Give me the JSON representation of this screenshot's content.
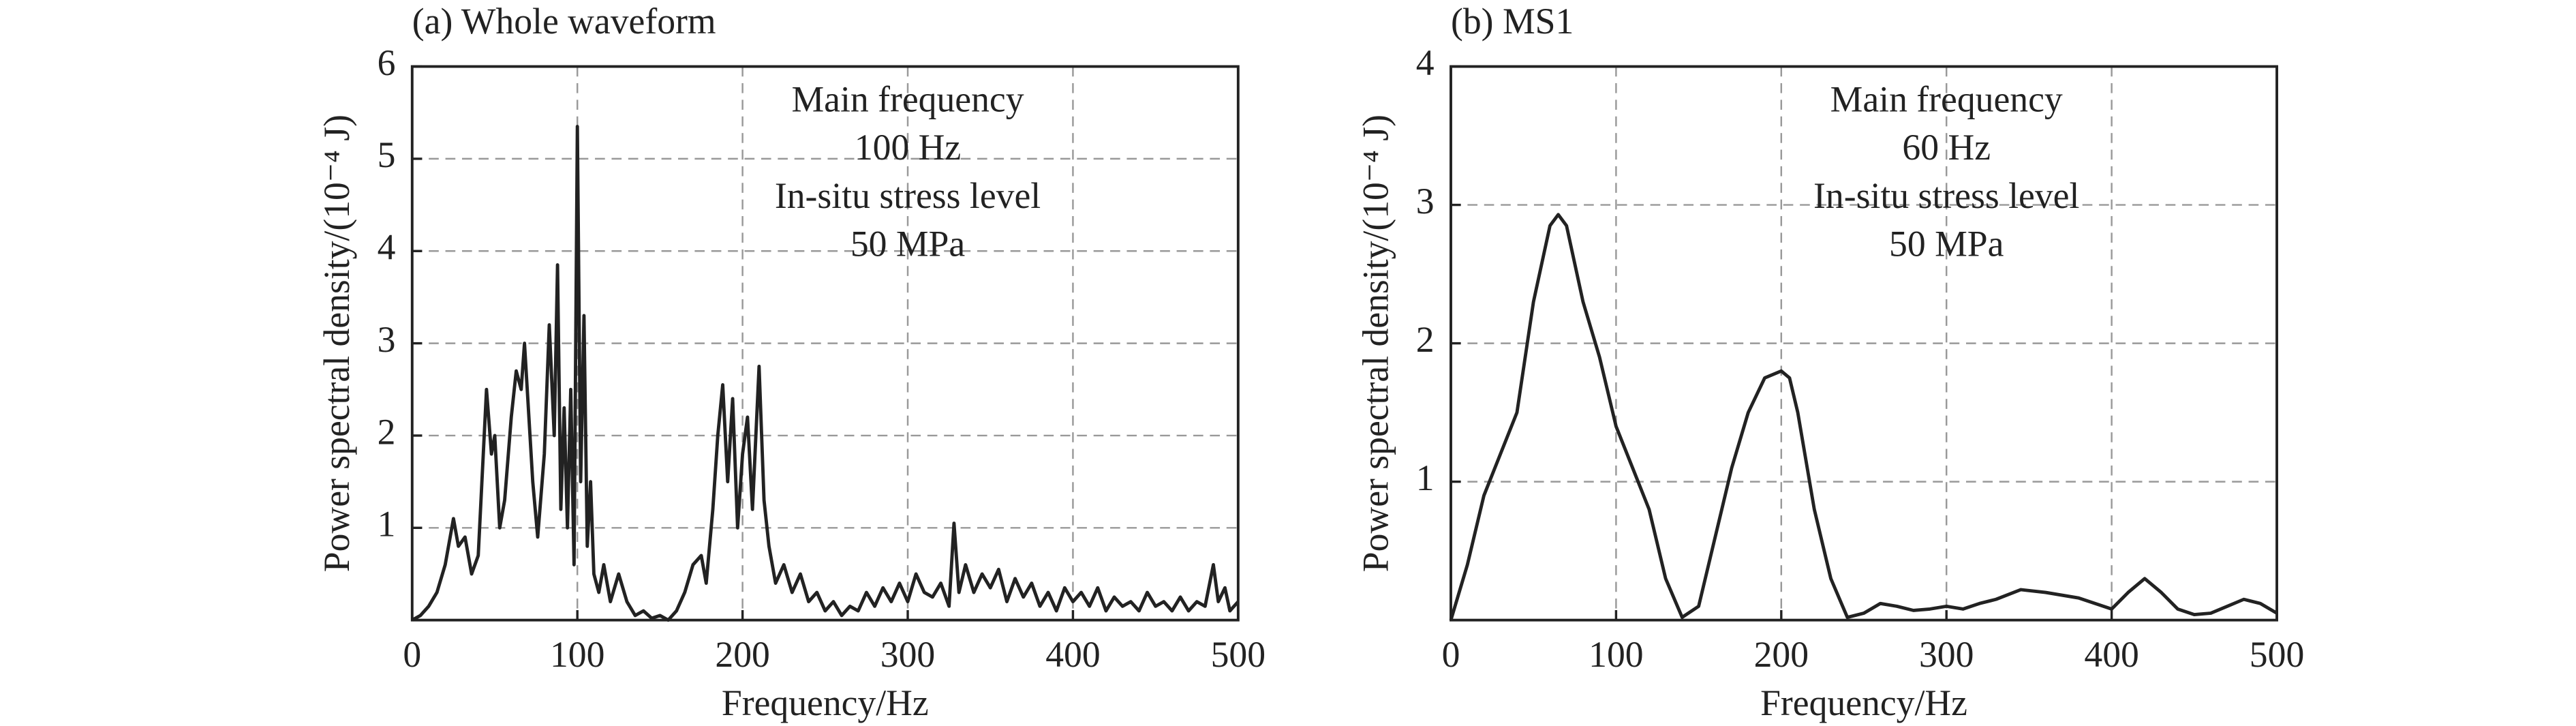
{
  "chart_data": [
    {
      "type": "line",
      "title": "(a) Whole waveform",
      "x_label": "Frequency/Hz",
      "y_label": "Power spectral density/(10⁻⁴ J)",
      "annotation": [
        "Main frequency",
        "100 Hz",
        "In-situ stress level",
        "50 MPa"
      ],
      "x": [
        0,
        5,
        10,
        15,
        20,
        25,
        28,
        32,
        36,
        40,
        45,
        48,
        50,
        53,
        56,
        60,
        63,
        66,
        68,
        70,
        73,
        76,
        80,
        83,
        86,
        88,
        90,
        92,
        94,
        96,
        98,
        100,
        102,
        104,
        106,
        108,
        110,
        113,
        116,
        120,
        125,
        130,
        135,
        140,
        145,
        150,
        155,
        160,
        165,
        170,
        175,
        178,
        182,
        185,
        188,
        191,
        194,
        197,
        200,
        203,
        206,
        210,
        213,
        216,
        220,
        225,
        230,
        235,
        240,
        245,
        250,
        255,
        260,
        265,
        270,
        275,
        280,
        285,
        290,
        295,
        300,
        305,
        310,
        315,
        320,
        325,
        328,
        331,
        335,
        340,
        345,
        350,
        355,
        360,
        365,
        370,
        375,
        380,
        385,
        390,
        395,
        400,
        405,
        410,
        415,
        420,
        425,
        430,
        435,
        440,
        445,
        450,
        455,
        460,
        465,
        470,
        475,
        480,
        485,
        488,
        492,
        495,
        500
      ],
      "values": [
        0,
        0.05,
        0.15,
        0.3,
        0.6,
        1.1,
        0.8,
        0.9,
        0.5,
        0.7,
        2.5,
        1.8,
        2.0,
        1.0,
        1.3,
        2.2,
        2.7,
        2.5,
        3.0,
        2.4,
        1.5,
        0.9,
        1.8,
        3.2,
        2.0,
        3.85,
        1.2,
        2.3,
        1.0,
        2.5,
        0.6,
        5.35,
        1.5,
        3.3,
        0.8,
        1.5,
        0.5,
        0.3,
        0.6,
        0.2,
        0.5,
        0.2,
        0.05,
        0.1,
        0.02,
        0.05,
        0,
        0.1,
        0.3,
        0.6,
        0.7,
        0.4,
        1.2,
        2.0,
        2.55,
        1.5,
        2.4,
        1.0,
        1.8,
        2.2,
        1.2,
        2.75,
        1.3,
        0.8,
        0.4,
        0.6,
        0.3,
        0.5,
        0.2,
        0.3,
        0.1,
        0.2,
        0.05,
        0.15,
        0.1,
        0.3,
        0.15,
        0.35,
        0.2,
        0.4,
        0.2,
        0.5,
        0.3,
        0.25,
        0.4,
        0.15,
        1.05,
        0.3,
        0.6,
        0.3,
        0.5,
        0.35,
        0.55,
        0.2,
        0.45,
        0.25,
        0.4,
        0.15,
        0.3,
        0.1,
        0.35,
        0.2,
        0.3,
        0.15,
        0.35,
        0.1,
        0.25,
        0.15,
        0.2,
        0.1,
        0.3,
        0.15,
        0.2,
        0.1,
        0.25,
        0.1,
        0.2,
        0.15,
        0.6,
        0.2,
        0.35,
        0.1,
        0.2
      ],
      "color": "#222222",
      "xlim": [
        0,
        500
      ],
      "ylim": [
        0,
        6
      ],
      "xticks": [
        0,
        100,
        200,
        300,
        400,
        500
      ],
      "yticks": [
        1,
        2,
        3,
        4,
        5,
        6
      ],
      "grid": true
    },
    {
      "type": "line",
      "title": "(b) MS1",
      "x_label": "Frequency/Hz",
      "y_label": "Power spectral density/(10⁻⁴ J)",
      "annotation": [
        "Main frequency",
        "60 Hz",
        "In-situ stress level",
        "50 MPa"
      ],
      "x": [
        0,
        10,
        20,
        30,
        40,
        50,
        60,
        65,
        70,
        80,
        90,
        100,
        110,
        120,
        130,
        140,
        150,
        160,
        170,
        180,
        190,
        200,
        205,
        210,
        220,
        230,
        240,
        250,
        260,
        270,
        280,
        290,
        300,
        310,
        320,
        330,
        345,
        360,
        380,
        400,
        410,
        420,
        430,
        440,
        450,
        460,
        470,
        480,
        490,
        500
      ],
      "values": [
        0,
        0.4,
        0.9,
        1.2,
        1.5,
        2.3,
        2.85,
        2.93,
        2.85,
        2.3,
        1.9,
        1.4,
        1.1,
        0.8,
        0.3,
        0.02,
        0.1,
        0.6,
        1.1,
        1.5,
        1.75,
        1.8,
        1.75,
        1.5,
        0.8,
        0.3,
        0.02,
        0.05,
        0.12,
        0.1,
        0.07,
        0.08,
        0.1,
        0.08,
        0.12,
        0.15,
        0.22,
        0.2,
        0.16,
        0.08,
        0.2,
        0.3,
        0.2,
        0.08,
        0.04,
        0.05,
        0.1,
        0.15,
        0.12,
        0.05
      ],
      "color": "#222222",
      "xlim": [
        0,
        500
      ],
      "ylim": [
        0,
        4
      ],
      "xticks": [
        0,
        100,
        200,
        300,
        400,
        500
      ],
      "yticks": [
        1,
        2,
        3,
        4
      ],
      "grid": true
    }
  ]
}
